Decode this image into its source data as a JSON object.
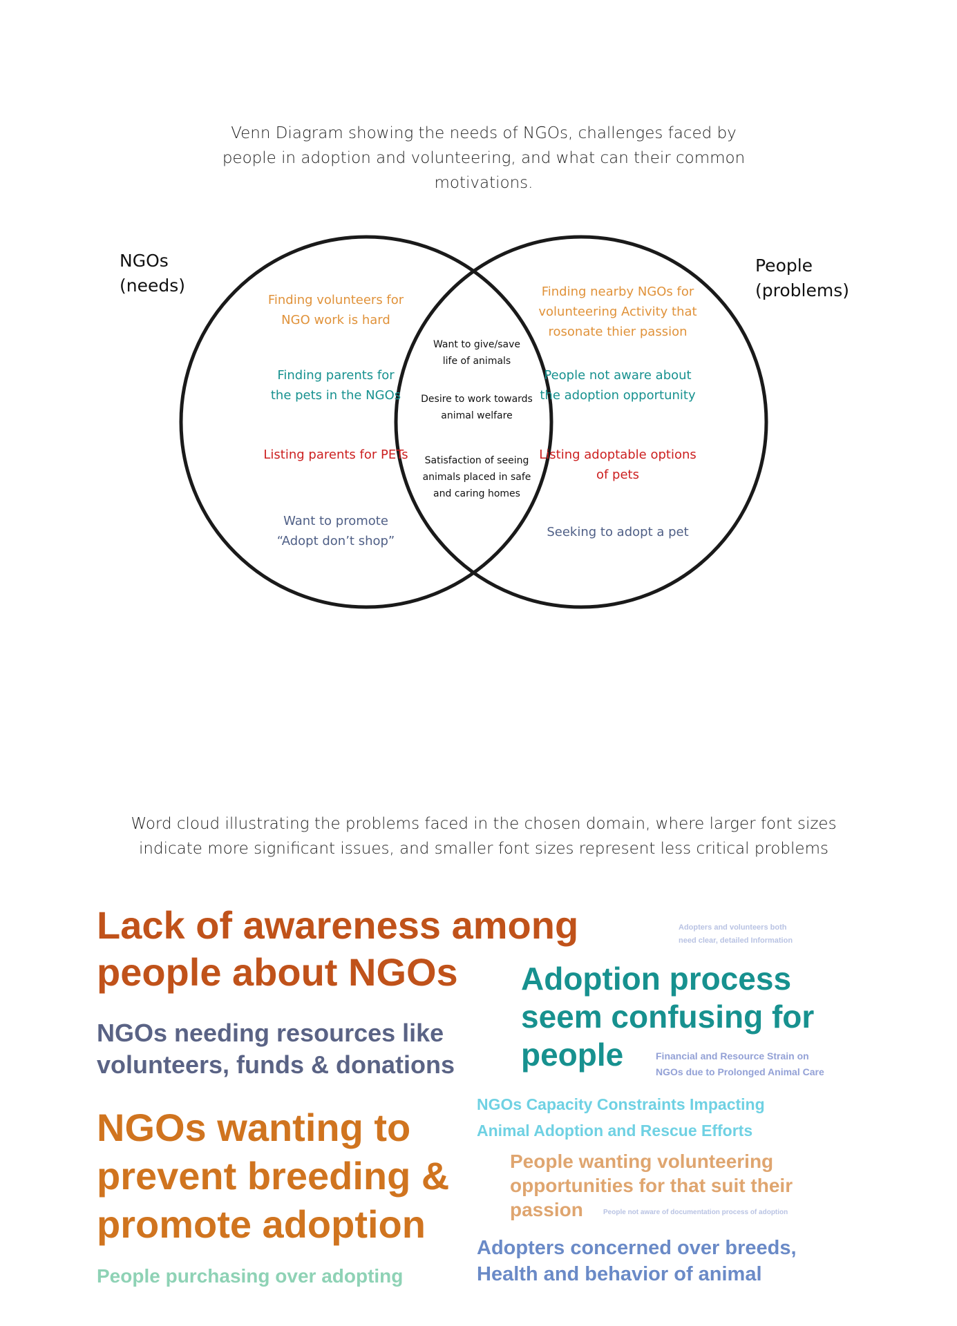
{
  "venn": {
    "caption_lines": [
      "Venn Diagram showing the needs of NGOs, challenges faced by",
      "people in adoption and volunteering, and what can their common",
      "motivations."
    ],
    "left_title": [
      "NGOs",
      "(needs)"
    ],
    "right_title": [
      "People",
      "(problems)"
    ],
    "left_items": [
      {
        "lines": [
          "Finding volunteers for",
          "NGO work is hard"
        ],
        "color": "#e0923a"
      },
      {
        "lines": [
          "Finding parents for",
          "the pets in the NGOs"
        ],
        "color": "#17918f"
      },
      {
        "lines": [
          "Listing parents for PETs"
        ],
        "color": "#cc1f1f"
      },
      {
        "lines": [
          "Want to promote",
          "“Adopt don’t shop”"
        ],
        "color": "#4f5f86"
      }
    ],
    "center_items": [
      {
        "lines": [
          "Want to give/save",
          "life of animals"
        ],
        "color": "#111111"
      },
      {
        "lines": [
          "Desire to work towards",
          "animal welfare"
        ],
        "color": "#111111"
      },
      {
        "lines": [
          "Satisfaction of seeing",
          "animals placed in safe",
          "and caring homes"
        ],
        "color": "#111111"
      }
    ],
    "right_items": [
      {
        "lines": [
          "Finding nearby NGOs for",
          "volunteering Activity that",
          "rosonate thier passion"
        ],
        "color": "#e0923a"
      },
      {
        "lines": [
          "People not aware about",
          "the adoption opportunity"
        ],
        "color": "#17918f"
      },
      {
        "lines": [
          "Listing adoptable options",
          "of pets"
        ],
        "color": "#cc1f1f"
      },
      {
        "lines": [
          "Seeking to adopt a pet"
        ],
        "color": "#4f5f86"
      }
    ]
  },
  "word_cloud": {
    "caption_lines": [
      "Word cloud illustrating the problems faced in the chosen domain, where larger font sizes",
      "indicate more significant issues, and smaller font sizes represent less critical problems"
    ],
    "phrases": [
      {
        "id": "wc-lack-awareness",
        "lines": [
          "Lack of awareness among",
          "people about NGOs"
        ],
        "color": "#c0521a"
      },
      {
        "id": "wc-clear-info",
        "lines": [
          "Adopters and volunteers both",
          "need clear, detailed Information"
        ],
        "color": "#b9c3e3"
      },
      {
        "id": "wc-adoption-confusing",
        "lines": [
          "Adoption process",
          "seem confusing for",
          "people"
        ],
        "color": "#17918f"
      },
      {
        "id": "wc-ngo-resources",
        "lines": [
          "NGOs needing resources like",
          "volunteers, funds & donations"
        ],
        "color": "#5a6385"
      },
      {
        "id": "wc-financial-strain",
        "lines": [
          "Financial and Resource Strain on",
          "NGOs due to Prolonged Animal Care"
        ],
        "color": "#93a1d6"
      },
      {
        "id": "wc-capacity",
        "lines": [
          "NGOs Capacity Constraints Impacting",
          "Animal Adoption and Rescue Efforts"
        ],
        "color": "#6fd1e3"
      },
      {
        "id": "wc-prevent-breeding",
        "lines": [
          "NGOs wanting to",
          "prevent breeding &",
          "promote adoption"
        ],
        "color": "#d0741f"
      },
      {
        "id": "wc-volunteering",
        "lines": [
          "People wanting volunteering",
          "opportunities for that suit their",
          "passion"
        ],
        "color": "#dfa56f"
      },
      {
        "id": "wc-documentation",
        "lines": [
          "People not aware of documentation process of adoption"
        ],
        "color": "#b9c3e3"
      },
      {
        "id": "wc-breed-concern",
        "lines": [
          "Adopters concerned over breeds,",
          "Health and behavior of animal"
        ],
        "color": "#6a8ac7"
      },
      {
        "id": "wc-purchasing",
        "lines": [
          "People purchasing over adopting"
        ],
        "color": "#8ed2b5"
      }
    ]
  }
}
